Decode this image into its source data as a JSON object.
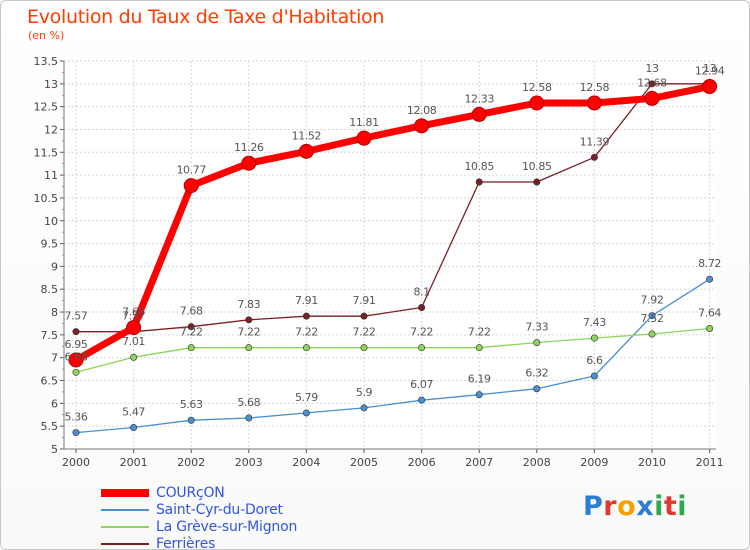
{
  "title": "Evolution du Taux de Taxe d'Habitation",
  "subtitle": "(en %)",
  "brand": {
    "text": "Proxiti",
    "colors": [
      "#2a7fd4",
      "#e03a2e",
      "#f5a100",
      "#2a7fd4",
      "#2fa84f",
      "#e03a2e",
      "#2fa84f"
    ]
  },
  "chart_data": {
    "type": "line",
    "x": [
      "2000",
      "2001",
      "2002",
      "2003",
      "2004",
      "2005",
      "2006",
      "2007",
      "2008",
      "2009",
      "2010",
      "2011"
    ],
    "ylim": [
      5,
      13.5
    ],
    "yticks": [
      "5",
      "5.5",
      "6",
      "6.5",
      "7",
      "7.5",
      "8",
      "8.5",
      "9",
      "9.5",
      "10",
      "10.5",
      "11",
      "11.5",
      "12",
      "12.5",
      "13",
      "13.5"
    ],
    "grid": true,
    "legend_position": "bottom-left",
    "series": [
      {
        "name": "COURçON",
        "color": "#ff0000",
        "values": [
          6.95,
          7.66,
          10.77,
          11.26,
          11.52,
          11.81,
          12.08,
          12.33,
          12.58,
          12.58,
          12.68,
          12.94
        ],
        "labels": [
          "6.95",
          "7.66",
          "10.77",
          "11.26",
          "11.52",
          "11.81",
          "12.08",
          "12.33",
          "12.58",
          "12.58",
          "12.68",
          "12.94"
        ]
      },
      {
        "name": "Saint-Cyr-du-Doret",
        "color": "#4a8fd0",
        "values": [
          5.36,
          5.47,
          5.63,
          5.68,
          5.79,
          5.9,
          6.07,
          6.19,
          6.32,
          6.6,
          7.92,
          8.72
        ],
        "labels": [
          "5.36",
          "5.47",
          "5.63",
          "5.68",
          "5.79",
          "5.9",
          "6.07",
          "6.19",
          "6.32",
          "6.6",
          "7.92",
          "8.72"
        ]
      },
      {
        "name": "La Grève-sur-Mignon",
        "color": "#8ed45a",
        "values": [
          6.68,
          7.01,
          7.22,
          7.22,
          7.22,
          7.22,
          7.22,
          7.22,
          7.33,
          7.43,
          7.52,
          7.64
        ],
        "labels": [
          "6.68",
          "7.01",
          "7.22",
          "7.22",
          "7.22",
          "7.22",
          "7.22",
          "7.22",
          "7.33",
          "7.43",
          "7.52",
          "7.64"
        ]
      },
      {
        "name": "Ferrières",
        "color": "#7a1f24",
        "values": [
          7.57,
          7.57,
          7.68,
          7.83,
          7.91,
          7.91,
          8.1,
          10.85,
          10.85,
          11.39,
          13,
          13
        ],
        "labels": [
          "7.57",
          "7.57",
          "7.68",
          "7.83",
          "7.91",
          "7.91",
          "8.1",
          "10.85",
          "10.85",
          "11.39",
          "13",
          "13"
        ]
      }
    ]
  }
}
